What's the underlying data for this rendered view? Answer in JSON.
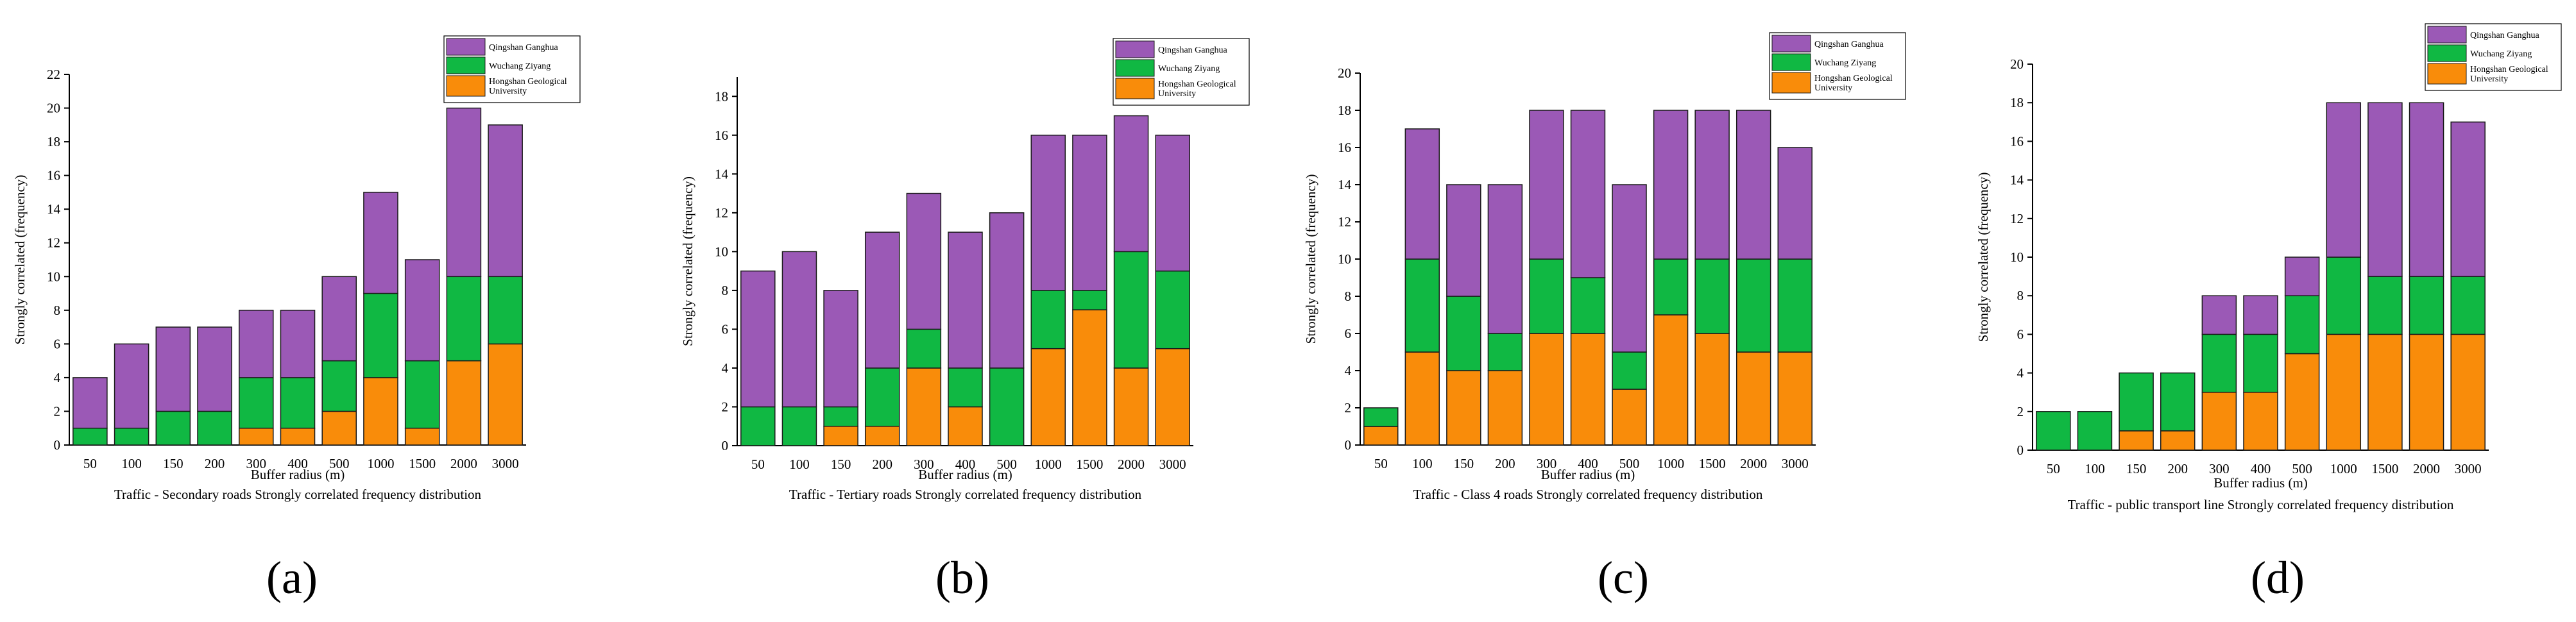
{
  "colors": {
    "Qingshan Ganghua": "#9b59b6",
    "Wuchang Ziyang": "#10b843",
    "Hongshan Geological University": "#f98c0a"
  },
  "chart_data": [
    {
      "type": "bar",
      "stacked": true,
      "panel_label": "(a)",
      "title": "Traffic - Secondary roads Strongly correlated frequency distribution",
      "xlabel": "Buffer radius (m)",
      "ylabel": "Strongly correlated (frequency)",
      "ylim": [
        0,
        22
      ],
      "yticks": [
        0,
        2,
        4,
        6,
        8,
        10,
        12,
        14,
        16,
        18,
        20,
        22
      ],
      "legend_position": "top-right",
      "categories": [
        "50",
        "100",
        "150",
        "200",
        "300",
        "400",
        "500",
        "1000",
        "1500",
        "2000",
        "3000"
      ],
      "series": [
        {
          "name": "Hongshan Geological University",
          "values": [
            0,
            0,
            0,
            0,
            1,
            1,
            2,
            4,
            1,
            5,
            6
          ]
        },
        {
          "name": "Wuchang Ziyang",
          "values": [
            1,
            1,
            2,
            2,
            3,
            3,
            3,
            5,
            4,
            5,
            4
          ]
        },
        {
          "name": "Qingshan Ganghua",
          "values": [
            3,
            5,
            5,
            5,
            4,
            4,
            5,
            6,
            6,
            10,
            9
          ]
        }
      ]
    },
    {
      "type": "bar",
      "stacked": true,
      "panel_label": "(b)",
      "title": "Traffic - Tertiary roads Strongly correlated frequency distribution",
      "xlabel": "Buffer radius (m)",
      "ylabel": "Strongly correlated (frequency)",
      "ylim": [
        0,
        19
      ],
      "yticks": [
        0,
        2,
        4,
        6,
        8,
        10,
        12,
        14,
        16,
        18
      ],
      "legend_position": "top-right",
      "categories": [
        "50",
        "100",
        "150",
        "200",
        "300",
        "400",
        "500",
        "1000",
        "1500",
        "2000",
        "3000"
      ],
      "series": [
        {
          "name": "Hongshan Geological University",
          "values": [
            0,
            0,
            1,
            1,
            4,
            2,
            0,
            5,
            7,
            4,
            5
          ]
        },
        {
          "name": "Wuchang Ziyang",
          "values": [
            2,
            2,
            1,
            3,
            2,
            2,
            4,
            3,
            1,
            6,
            4
          ]
        },
        {
          "name": "Qingshan Ganghua",
          "values": [
            7,
            8,
            6,
            7,
            7,
            7,
            8,
            8,
            8,
            7,
            7
          ]
        }
      ]
    },
    {
      "type": "bar",
      "stacked": true,
      "panel_label": "(c)",
      "title": "Traffic - Class 4 roads Strongly correlated frequency distribution",
      "xlabel": "Buffer radius (m)",
      "ylabel": "Strongly correlated (frequency)",
      "ylim": [
        0,
        20
      ],
      "yticks": [
        0,
        2,
        4,
        6,
        8,
        10,
        12,
        14,
        16,
        18,
        20
      ],
      "legend_position": "top-right",
      "categories": [
        "50",
        "100",
        "150",
        "200",
        "300",
        "400",
        "500",
        "1000",
        "1500",
        "2000",
        "3000"
      ],
      "series": [
        {
          "name": "Hongshan Geological University",
          "values": [
            1,
            5,
            4,
            4,
            6,
            6,
            3,
            7,
            6,
            5,
            5
          ]
        },
        {
          "name": "Wuchang Ziyang",
          "values": [
            1,
            5,
            4,
            2,
            4,
            3,
            2,
            3,
            4,
            5,
            5
          ]
        },
        {
          "name": "Qingshan Ganghua",
          "values": [
            0,
            7,
            6,
            8,
            8,
            9,
            9,
            8,
            8,
            8,
            6
          ]
        }
      ]
    },
    {
      "type": "bar",
      "stacked": true,
      "panel_label": "(d)",
      "title": "Traffic - public transport line Strongly correlated frequency distribution",
      "xlabel": "Buffer radius (m)",
      "ylabel": "Strongly correlated (frequency)",
      "ylim": [
        0,
        20
      ],
      "yticks": [
        0,
        2,
        4,
        6,
        8,
        10,
        12,
        14,
        16,
        18,
        20
      ],
      "legend_position": "top-right",
      "categories": [
        "50",
        "100",
        "150",
        "200",
        "300",
        "400",
        "500",
        "1000",
        "1500",
        "2000",
        "3000"
      ],
      "series": [
        {
          "name": "Hongshan Geological University",
          "values": [
            0,
            0,
            1,
            1,
            3,
            3,
            5,
            6,
            6,
            6,
            6
          ]
        },
        {
          "name": "Wuchang Ziyang",
          "values": [
            2,
            2,
            3,
            3,
            3,
            3,
            3,
            4,
            3,
            3,
            3
          ]
        },
        {
          "name": "Qingshan Ganghua",
          "values": [
            0,
            0,
            0,
            0,
            2,
            2,
            2,
            8,
            9,
            9,
            8
          ]
        }
      ]
    }
  ]
}
